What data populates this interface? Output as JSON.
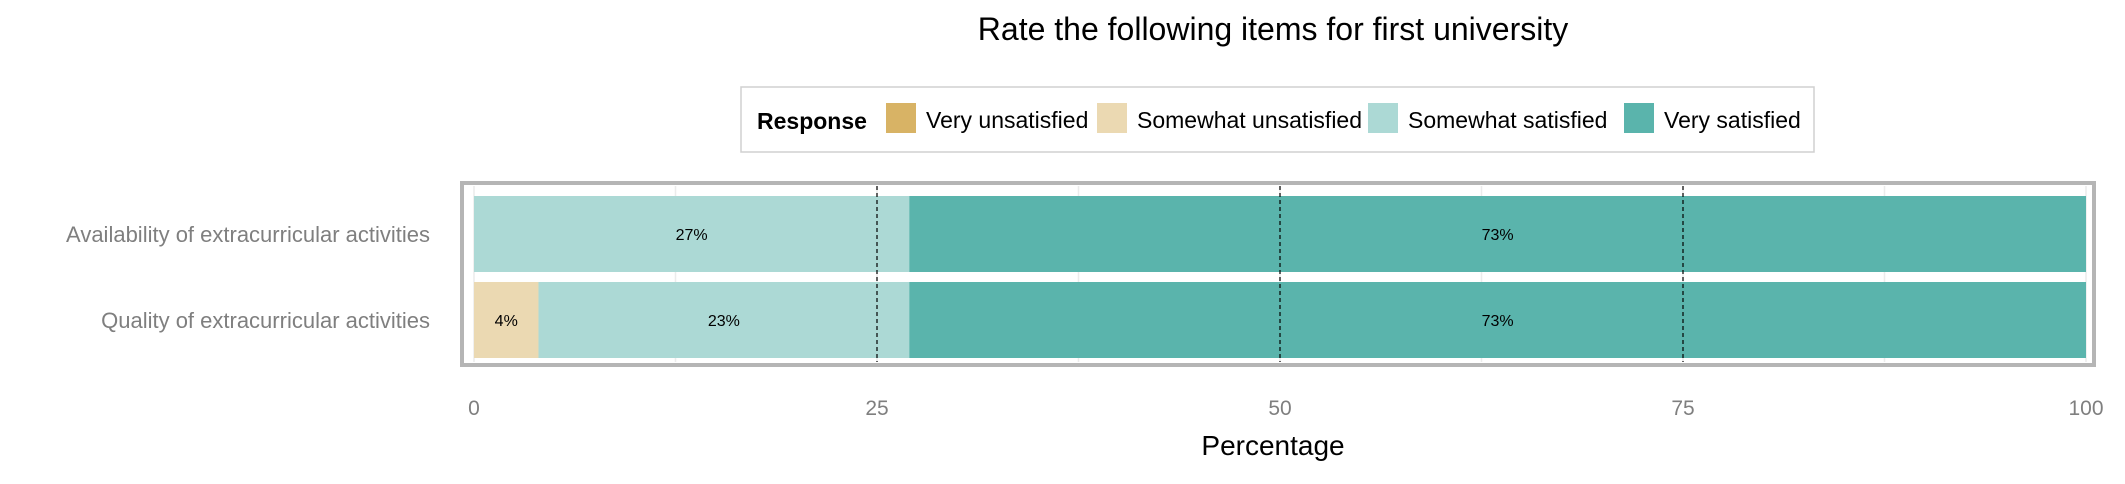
{
  "chart_data": {
    "type": "bar",
    "orientation": "horizontal",
    "stacked": true,
    "title": "Rate the following items for first university",
    "xlabel": "Percentage",
    "ylabel": "",
    "xlim": [
      0,
      100
    ],
    "x_ticks": [
      "0",
      "25",
      "50",
      "75",
      "100"
    ],
    "categories": [
      "Availability of extracurricular activities",
      "Quality of extracurricular activities"
    ],
    "legend": {
      "title": "Response",
      "placement": "top"
    },
    "series": [
      {
        "name": "Very unsatisfied",
        "color": "#d8b365",
        "values": [
          0,
          0
        ],
        "labels": [
          "",
          ""
        ]
      },
      {
        "name": "Somewhat unsatisfied",
        "color": "#ebd9b2",
        "values": [
          0,
          4
        ],
        "labels": [
          "",
          "4%"
        ]
      },
      {
        "name": "Somewhat satisfied",
        "color": "#acd9d5",
        "values": [
          27,
          23
        ],
        "labels": [
          "27%",
          "23%"
        ]
      },
      {
        "name": "Very satisfied",
        "color": "#5ab4ac",
        "values": [
          73,
          73
        ],
        "labels": [
          "73%",
          "73%"
        ]
      }
    ],
    "grid": true,
    "reference_lines": [
      25,
      50,
      75
    ]
  }
}
